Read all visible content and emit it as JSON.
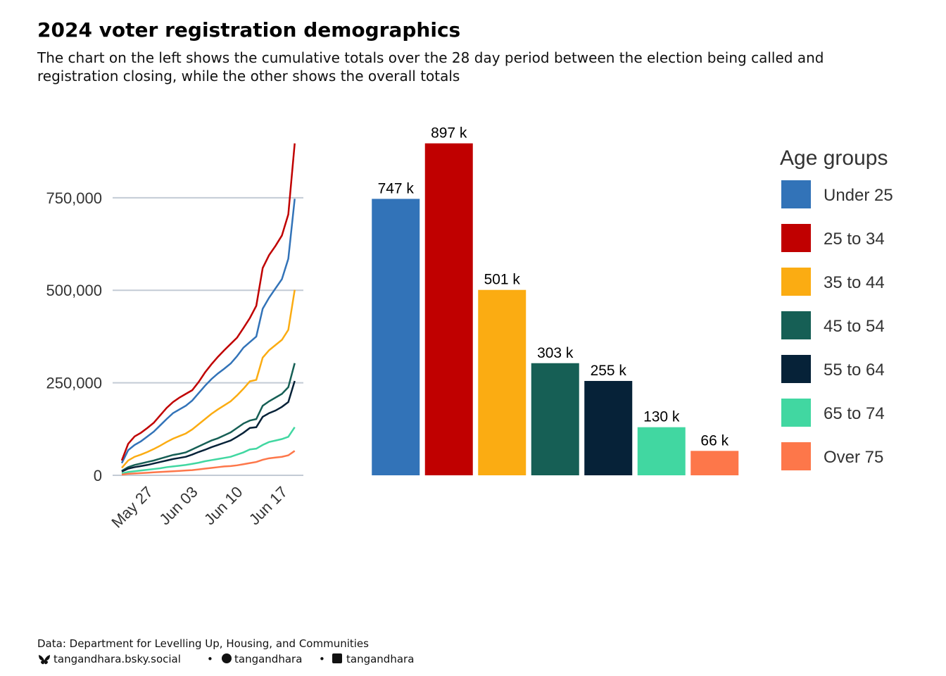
{
  "title": "2024 voter registration demographics",
  "subtitle": [
    "The chart on the left shows the cumulative totals over the 28 day period between the election being called and",
    "registration closing, while the other shows the overall totals"
  ],
  "footer": {
    "source": "Data: Department for Levelling Up, Housing, and Communities",
    "handles": [
      "tangandhara.bsky.social",
      "tangandhara",
      "tangandhara"
    ],
    "separator": "•"
  },
  "chart_data": [
    {
      "type": "line",
      "x": [
        "May 22",
        "May 23",
        "May 24",
        "May 25",
        "May 26",
        "May 27",
        "May 28",
        "May 29",
        "May 30",
        "May 31",
        "Jun 01",
        "Jun 02",
        "Jun 03",
        "Jun 04",
        "Jun 05",
        "Jun 06",
        "Jun 07",
        "Jun 08",
        "Jun 09",
        "Jun 10",
        "Jun 11",
        "Jun 12",
        "Jun 13",
        "Jun 14",
        "Jun 15",
        "Jun 16",
        "Jun 17",
        "Jun 18"
      ],
      "xticks": [
        "May 27",
        "Jun 03",
        "Jun 10",
        "Jun 17"
      ],
      "ylim": [
        0,
        900000
      ],
      "yticks": [
        0,
        {
          "value": 250000,
          "label": "250,000"
        },
        {
          "value": 500000,
          "label": "500,000"
        },
        {
          "value": 750000,
          "label": "750,000"
        }
      ],
      "grid": true,
      "series": [
        {
          "color": "#3273b8",
          "values": [
            33000,
            68000,
            82000,
            92000,
            105000,
            118000,
            135000,
            152000,
            168000,
            178000,
            188000,
            202000,
            222000,
            242000,
            260000,
            275000,
            288000,
            302000,
            322000,
            345000,
            360000,
            375000,
            450000,
            480000,
            505000,
            530000,
            585000,
            747000
          ]
        },
        {
          "color": "#c00000",
          "values": [
            40000,
            85000,
            105000,
            115000,
            128000,
            142000,
            162000,
            182000,
            198000,
            210000,
            220000,
            230000,
            252000,
            278000,
            300000,
            320000,
            338000,
            355000,
            372000,
            398000,
            425000,
            458000,
            560000,
            595000,
            620000,
            648000,
            705000,
            897000
          ]
        },
        {
          "color": "#fbac12",
          "values": [
            20000,
            40000,
            50000,
            56000,
            63000,
            71000,
            80000,
            90000,
            99000,
            106000,
            113000,
            124000,
            138000,
            152000,
            166000,
            178000,
            189000,
            200000,
            216000,
            234000,
            254000,
            258000,
            318000,
            338000,
            352000,
            366000,
            393000,
            501000
          ]
        },
        {
          "color": "#165f55",
          "values": [
            12000,
            22000,
            28000,
            32000,
            36000,
            40000,
            45000,
            50000,
            55000,
            58000,
            62000,
            70000,
            78000,
            86000,
            94000,
            100000,
            108000,
            116000,
            128000,
            140000,
            148000,
            152000,
            188000,
            200000,
            210000,
            220000,
            238000,
            303000
          ]
        },
        {
          "color": "#062238",
          "values": [
            10000,
            18000,
            22000,
            25000,
            28000,
            32000,
            36000,
            40000,
            44000,
            47000,
            50000,
            56000,
            63000,
            69000,
            76000,
            82000,
            88000,
            94000,
            104000,
            115000,
            128000,
            130000,
            158000,
            168000,
            175000,
            185000,
            198000,
            255000
          ]
        },
        {
          "color": "#41d7a1",
          "values": [
            5000,
            9000,
            11000,
            13000,
            15000,
            17000,
            19000,
            22000,
            24000,
            26000,
            28000,
            31000,
            34000,
            38000,
            41000,
            44000,
            47000,
            50000,
            56000,
            62000,
            70000,
            72000,
            82000,
            90000,
            94000,
            98000,
            104000,
            130000
          ]
        },
        {
          "color": "#fd774a",
          "values": [
            2000,
            4000,
            5000,
            6000,
            7000,
            8000,
            9000,
            10000,
            11000,
            12000,
            13000,
            14000,
            16000,
            18000,
            20000,
            22000,
            24000,
            25000,
            27000,
            30000,
            33000,
            36000,
            42000,
            46000,
            48000,
            50000,
            54000,
            66000
          ]
        }
      ]
    },
    {
      "type": "bar",
      "legend_title": "Age groups",
      "categories": [
        "Under 25",
        "25 to 34",
        "35 to 44",
        "45 to 54",
        "55 to 64",
        "65 to 74",
        "Over 75"
      ],
      "colors": [
        "#3273b8",
        "#c00000",
        "#fbac12",
        "#165f55",
        "#062238",
        "#41d7a1",
        "#fd774a"
      ],
      "values": [
        747000,
        897000,
        501000,
        303000,
        255000,
        130000,
        66000
      ],
      "value_labels": [
        "747 k",
        "897 k",
        "501 k",
        "303 k",
        "255 k",
        "130 k",
        "66 k"
      ],
      "ylim": [
        0,
        900000
      ],
      "legend": "right"
    }
  ]
}
